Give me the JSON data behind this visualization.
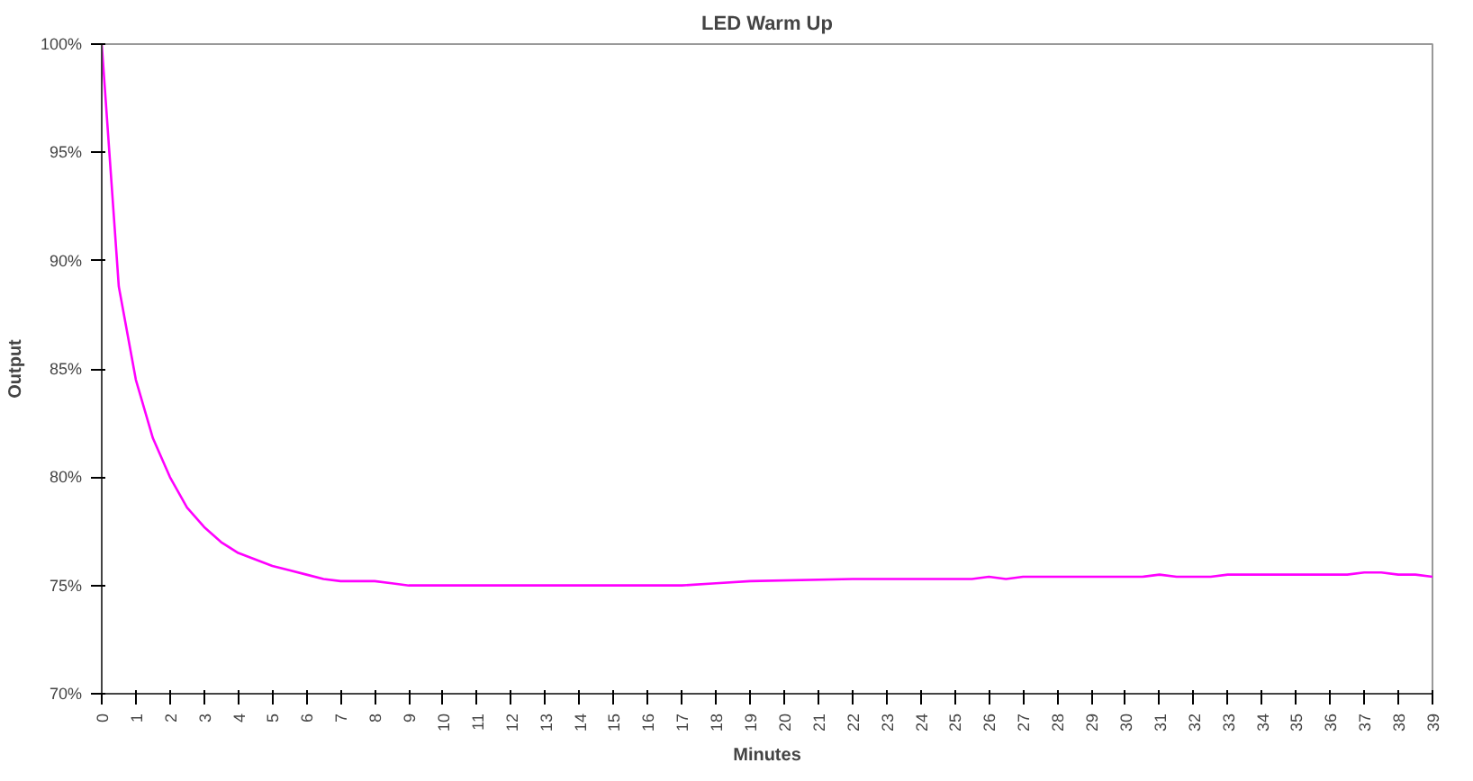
{
  "chart_data": {
    "type": "line",
    "title": "LED Warm Up",
    "xlabel": "Minutes",
    "ylabel": "Output",
    "x": [
      0,
      0.5,
      1,
      1.5,
      2,
      2.5,
      3,
      3.5,
      4,
      4.5,
      5,
      5.5,
      6,
      6.5,
      7,
      7.5,
      8,
      8.5,
      9,
      10,
      17,
      18,
      19,
      22,
      25.5,
      26,
      26.5,
      27,
      30.5,
      31,
      31.5,
      32.5,
      33,
      36.5,
      37,
      37.5,
      38,
      38.5,
      39
    ],
    "series": [
      {
        "color": "#ff00ff",
        "values": [
          100,
          88.8,
          84.5,
          81.8,
          80.0,
          78.6,
          77.7,
          77.0,
          76.5,
          76.2,
          75.9,
          75.7,
          75.5,
          75.3,
          75.2,
          75.2,
          75.2,
          75.1,
          75.0,
          75.0,
          75.0,
          75.1,
          75.2,
          75.3,
          75.3,
          75.4,
          75.3,
          75.4,
          75.4,
          75.5,
          75.4,
          75.4,
          75.5,
          75.5,
          75.6,
          75.6,
          75.5,
          75.5,
          75.4
        ]
      }
    ],
    "xlim": [
      0,
      39
    ],
    "xticks": [
      0,
      1,
      2,
      3,
      4,
      5,
      6,
      7,
      8,
      9,
      10,
      11,
      12,
      13,
      14,
      15,
      16,
      17,
      18,
      19,
      20,
      21,
      22,
      23,
      24,
      25,
      26,
      27,
      28,
      29,
      30,
      31,
      32,
      33,
      34,
      35,
      36,
      37,
      38,
      39
    ],
    "ylim": [
      70,
      100
    ],
    "yticks": [
      {
        "value": 70,
        "label": "70%"
      },
      {
        "value": 75,
        "label": "75%"
      },
      {
        "value": 80,
        "label": "80%"
      },
      {
        "value": 85,
        "label": "85%"
      },
      {
        "value": 90,
        "label": "90%"
      },
      {
        "value": 95,
        "label": "95%"
      },
      {
        "value": 100,
        "label": "100%"
      }
    ],
    "grid": false,
    "marker": "none",
    "line_style": "solid"
  }
}
